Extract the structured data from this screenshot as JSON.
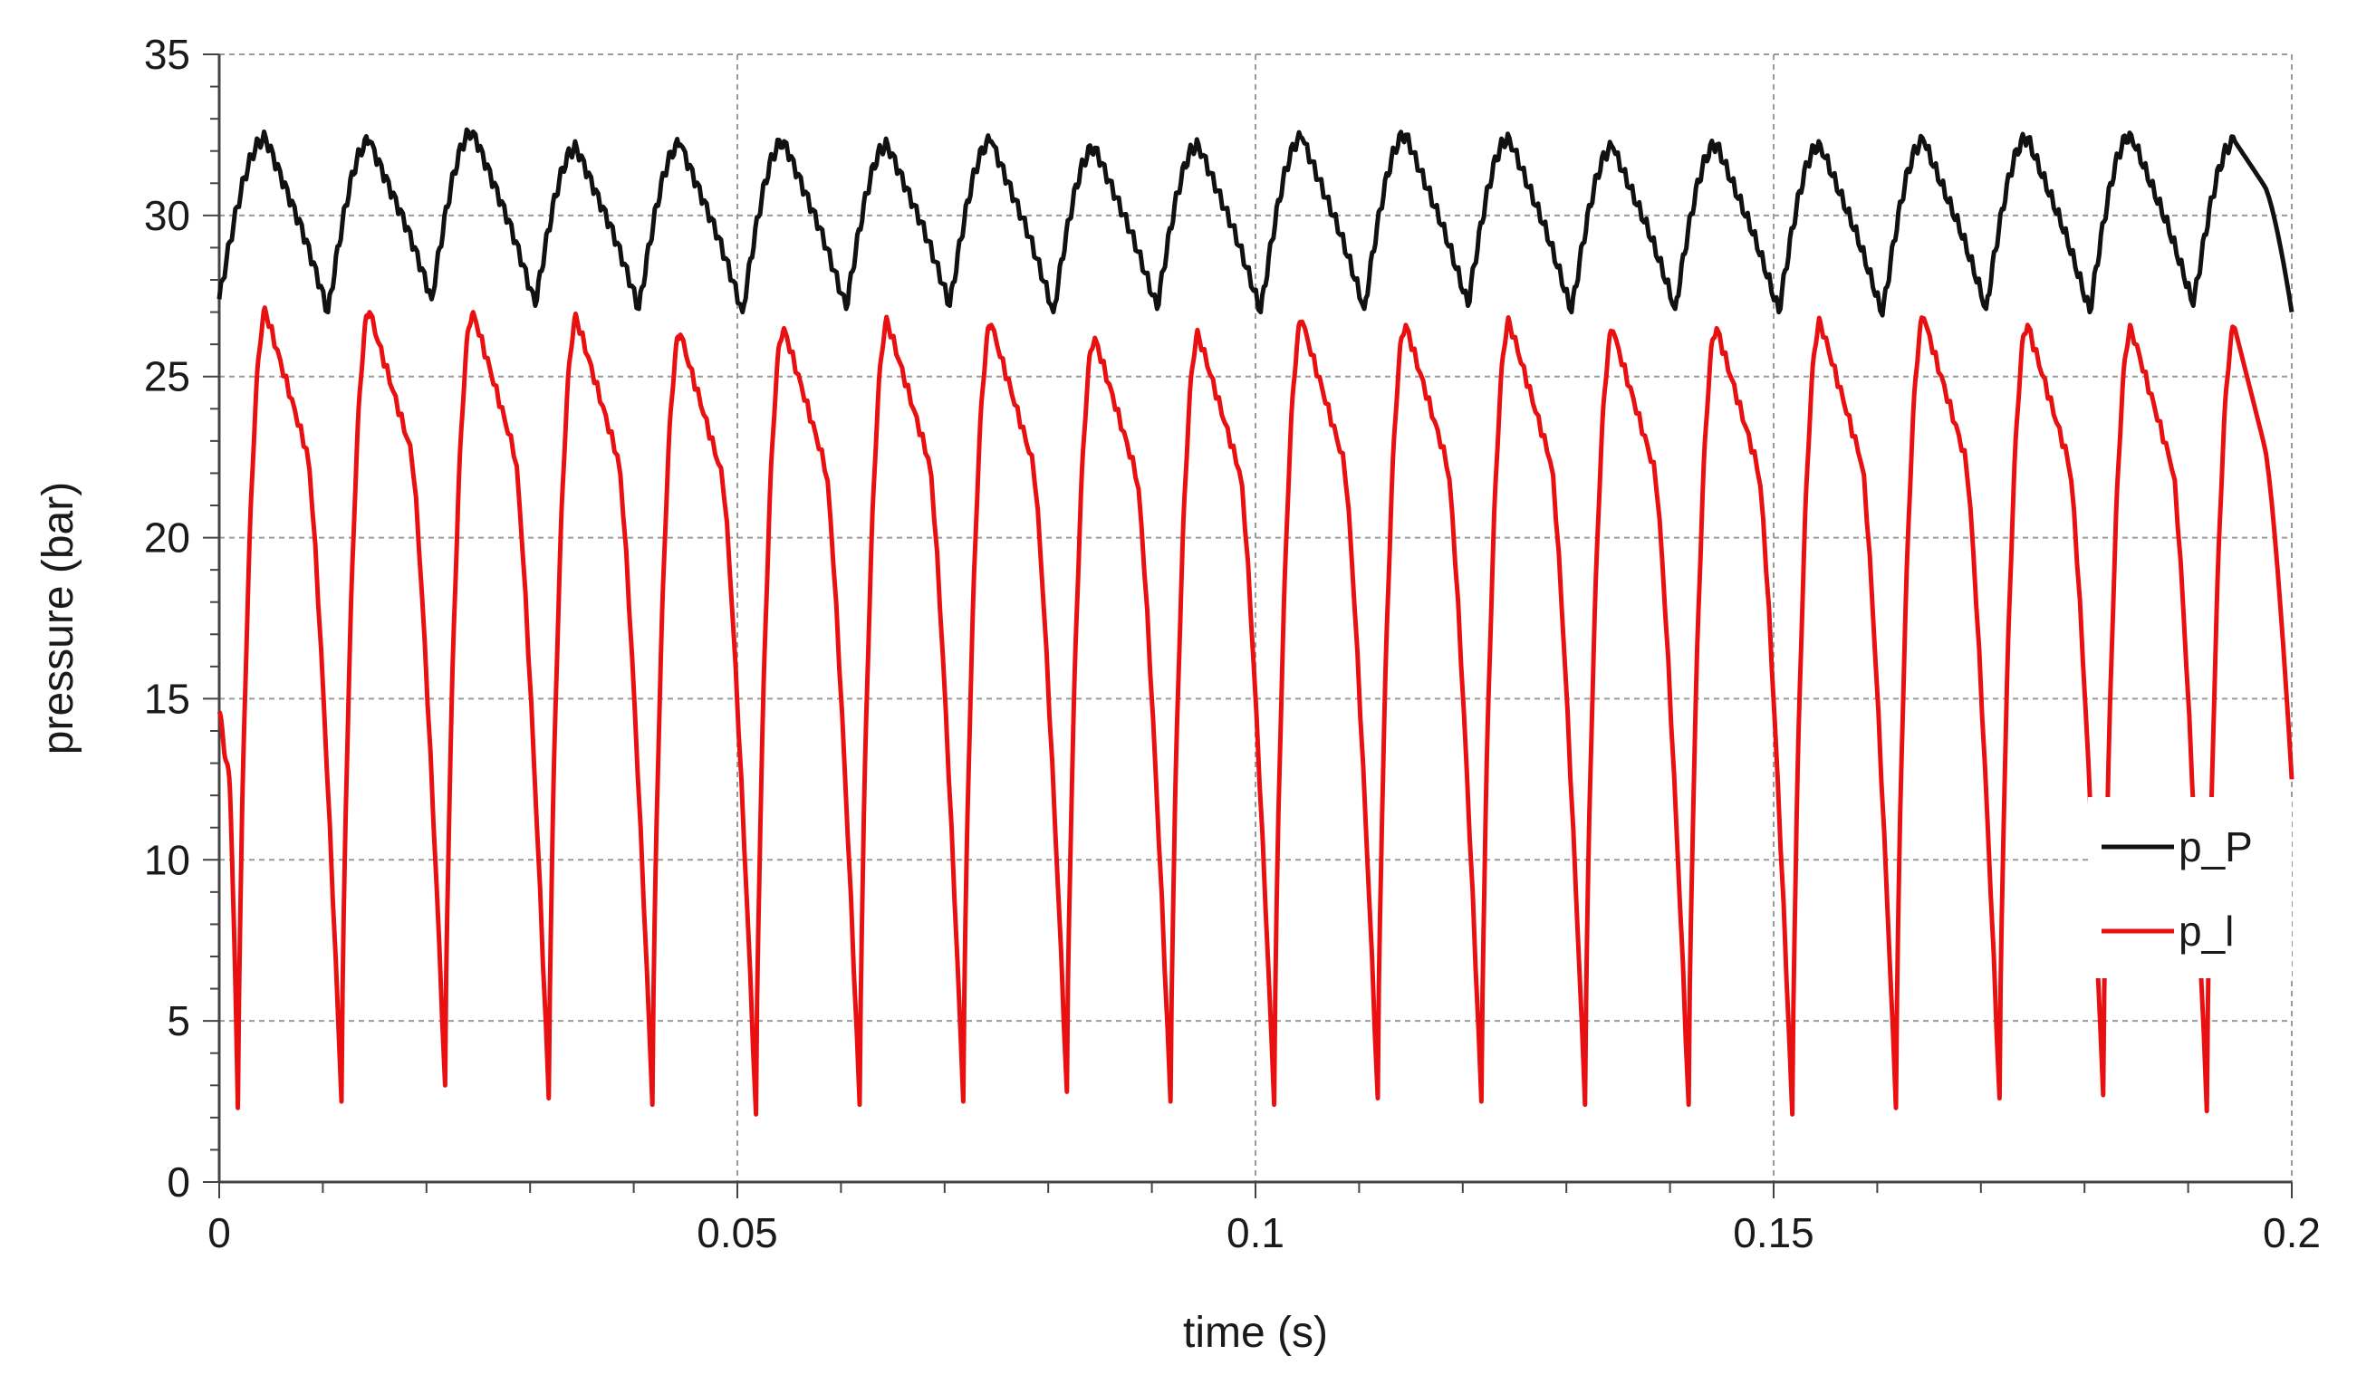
{
  "chart_data": {
    "type": "line",
    "title": "",
    "xlabel": "time (s)",
    "ylabel": "pressure (bar)",
    "xlim": [
      0,
      0.2
    ],
    "ylim": [
      0,
      35
    ],
    "x_ticks": [
      0,
      0.05,
      0.1,
      0.15,
      0.2
    ],
    "x_tick_labels": [
      "0",
      "0.05",
      "0.1",
      "0.15",
      "0.2"
    ],
    "y_ticks": [
      0,
      5,
      10,
      15,
      20,
      25,
      30,
      35
    ],
    "y_tick_labels": [
      "0",
      "5",
      "10",
      "15",
      "20",
      "25",
      "30",
      "35"
    ],
    "grid": true,
    "legend_position": "right",
    "period_s": 0.01,
    "series": [
      {
        "name": "p_P",
        "color": "#111111",
        "start_value": 27.4,
        "end_value": 27.0,
        "peak_times": [
          0.0045,
          0.0145,
          0.0245,
          0.0345,
          0.0445,
          0.0545,
          0.0645,
          0.0745,
          0.0845,
          0.0945,
          0.1045,
          0.1145,
          0.1245,
          0.1345,
          0.1445,
          0.1545,
          0.1645,
          0.1745,
          0.1845,
          0.1945
        ],
        "peak_values": [
          32.4,
          32.3,
          32.6,
          32.1,
          32.2,
          32.3,
          32.2,
          32.3,
          32.1,
          32.2,
          32.4,
          32.5,
          32.4,
          32.1,
          32.2,
          32.2,
          32.3,
          32.4,
          32.5,
          32.3
        ],
        "trough_times": [
          0.0105,
          0.0205,
          0.0305,
          0.0405,
          0.0505,
          0.0605,
          0.0705,
          0.0805,
          0.0905,
          0.1005,
          0.1105,
          0.1205,
          0.1305,
          0.1405,
          0.1505,
          0.1605,
          0.1705,
          0.1805,
          0.1905
        ],
        "trough_values": [
          27.0,
          27.4,
          27.2,
          27.1,
          27.0,
          27.1,
          27.2,
          27.0,
          27.1,
          27.0,
          27.1,
          27.2,
          27.0,
          27.1,
          27.0,
          26.9,
          27.1,
          27.0,
          27.2
        ]
      },
      {
        "name": "p_l",
        "color": "#e81010",
        "start_value": 14.6,
        "end_value": 12.5,
        "peak_times": [
          0.0045,
          0.0145,
          0.0245,
          0.0345,
          0.0445,
          0.0545,
          0.0645,
          0.0745,
          0.0845,
          0.0945,
          0.1045,
          0.1145,
          0.1245,
          0.1345,
          0.1445,
          0.1545,
          0.1645,
          0.1745,
          0.1845,
          0.1945
        ],
        "peak_values": [
          27.0,
          27.0,
          27.0,
          26.8,
          26.3,
          26.5,
          26.7,
          26.6,
          26.2,
          26.3,
          26.7,
          26.6,
          26.7,
          26.4,
          26.5,
          26.7,
          26.8,
          26.6,
          26.5,
          26.5
        ],
        "trough_times": [
          0.0018,
          0.0118,
          0.0218,
          0.0318,
          0.0418,
          0.0518,
          0.0618,
          0.0718,
          0.0818,
          0.0918,
          0.1018,
          0.1118,
          0.1218,
          0.1318,
          0.1418,
          0.1518,
          0.1618,
          0.1718,
          0.1818,
          0.1918
        ],
        "trough_values": [
          2.3,
          2.5,
          3.0,
          2.6,
          2.4,
          2.1,
          2.4,
          2.5,
          2.8,
          2.5,
          2.4,
          2.6,
          2.5,
          2.4,
          2.4,
          2.1,
          2.3,
          2.6,
          2.7,
          2.2
        ]
      }
    ]
  }
}
